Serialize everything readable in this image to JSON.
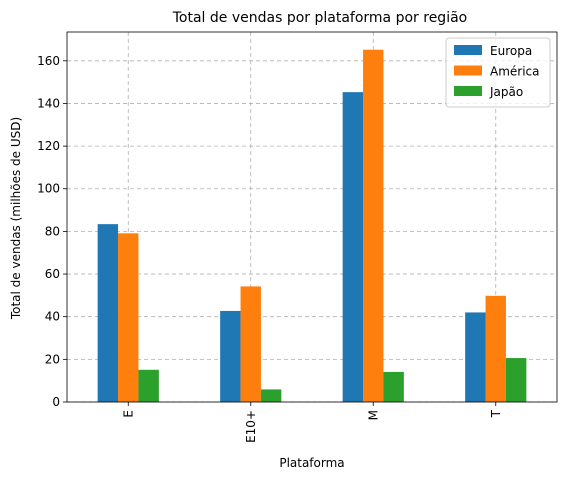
{
  "chart_data": {
    "type": "bar",
    "title": "Total de vendas por plataforma por região",
    "xlabel": "Plataforma",
    "ylabel": "Total de vendas (milhões de USD)",
    "categories": [
      "E",
      "E10+",
      "M",
      "T"
    ],
    "series": [
      {
        "name": "Europa",
        "color": "#1f77b4",
        "values": [
          83.4,
          42.7,
          145.3,
          42.0
        ]
      },
      {
        "name": "América",
        "color": "#ff7f0e",
        "values": [
          79.1,
          54.2,
          165.2,
          49.8
        ]
      },
      {
        "name": "Japão",
        "color": "#2ca02c",
        "values": [
          15.1,
          5.9,
          14.1,
          20.6
        ]
      }
    ],
    "ylim": [
      0,
      173.5
    ],
    "yticks": [
      0,
      20,
      40,
      60,
      80,
      100,
      120,
      140,
      160
    ],
    "grid": true,
    "legend_position": "top-right"
  }
}
